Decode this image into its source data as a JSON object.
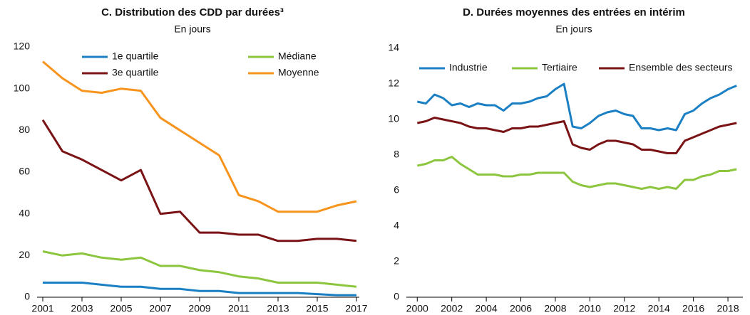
{
  "chart_data": [
    {
      "type": "line",
      "title": "C. Distribution des CDD par durées³",
      "subtitle": "En jours",
      "x": [
        2001,
        2002,
        2003,
        2004,
        2005,
        2006,
        2007,
        2008,
        2009,
        2010,
        2011,
        2012,
        2013,
        2014,
        2015,
        2016,
        2017
      ],
      "xlim": [
        2001,
        2017
      ],
      "xticks": [
        2001,
        2003,
        2005,
        2007,
        2009,
        2011,
        2013,
        2015,
        2017
      ],
      "ylim": [
        0,
        120
      ],
      "yticks": [
        0,
        20,
        40,
        60,
        80,
        100,
        120
      ],
      "grid": false,
      "series": [
        {
          "name": "1e quartile",
          "color": "#1b7fc4",
          "values": [
            7,
            7,
            7,
            6,
            5,
            5,
            4,
            4,
            3,
            3,
            2,
            2,
            2,
            2,
            1.5,
            1,
            1
          ]
        },
        {
          "name": "Médiane",
          "color": "#8cc63f",
          "values": [
            22,
            20,
            21,
            19,
            18,
            19,
            15,
            15,
            13,
            12,
            10,
            9,
            7,
            7,
            7,
            6,
            5
          ]
        },
        {
          "name": "3e quartile",
          "color": "#7a1315",
          "values": [
            85,
            70,
            66,
            61,
            56,
            61,
            40,
            41,
            31,
            31,
            30,
            30,
            27,
            27,
            28,
            28,
            27
          ]
        },
        {
          "name": "Moyenne",
          "color": "#f7941d",
          "values": [
            113,
            105,
            99,
            98,
            100,
            99,
            86,
            80,
            74,
            68,
            49,
            46,
            41,
            41,
            41,
            44,
            46
          ]
        }
      ]
    },
    {
      "type": "line",
      "title": "D. Durées moyennes des entrées en intérim",
      "subtitle": "En jours",
      "x": [
        2000,
        2000.5,
        2001,
        2001.5,
        2002,
        2002.5,
        2003,
        2003.5,
        2004,
        2004.5,
        2005,
        2005.5,
        2006,
        2006.5,
        2007,
        2007.5,
        2008,
        2008.5,
        2009,
        2009.5,
        2010,
        2010.5,
        2011,
        2011.5,
        2012,
        2012.5,
        2013,
        2013.5,
        2014,
        2014.5,
        2015,
        2015.5,
        2016,
        2016.5,
        2017,
        2017.5,
        2018,
        2018.5
      ],
      "xlim": [
        1999.7,
        2018.7
      ],
      "xticks": [
        2000,
        2002,
        2004,
        2006,
        2008,
        2010,
        2012,
        2014,
        2016,
        2018
      ],
      "ylim": [
        0,
        14
      ],
      "yticks": [
        0,
        2,
        4,
        6,
        8,
        10,
        12,
        14
      ],
      "grid": false,
      "series": [
        {
          "name": "Industrie",
          "color": "#1b7fc4",
          "values": [
            11.0,
            10.9,
            11.4,
            11.2,
            10.8,
            10.9,
            10.7,
            10.9,
            10.8,
            10.8,
            10.5,
            10.9,
            10.9,
            11.0,
            11.2,
            11.3,
            11.7,
            12.0,
            9.6,
            9.5,
            9.8,
            10.2,
            10.4,
            10.5,
            10.3,
            10.2,
            9.5,
            9.5,
            9.4,
            9.5,
            9.4,
            10.3,
            10.5,
            10.9,
            11.2,
            11.4,
            11.7,
            11.9
          ]
        },
        {
          "name": "Tertiaire",
          "color": "#8cc63f",
          "values": [
            7.4,
            7.5,
            7.7,
            7.7,
            7.9,
            7.5,
            7.2,
            6.9,
            6.9,
            6.9,
            6.8,
            6.8,
            6.9,
            6.9,
            7.0,
            7.0,
            7.0,
            7.0,
            6.5,
            6.3,
            6.2,
            6.3,
            6.4,
            6.4,
            6.3,
            6.2,
            6.1,
            6.2,
            6.1,
            6.2,
            6.1,
            6.6,
            6.6,
            6.8,
            6.9,
            7.1,
            7.1,
            7.2
          ]
        },
        {
          "name": "Ensemble des secteurs",
          "color": "#7a1315",
          "values": [
            9.8,
            9.9,
            10.1,
            10.0,
            9.9,
            9.8,
            9.6,
            9.5,
            9.5,
            9.4,
            9.3,
            9.5,
            9.5,
            9.6,
            9.6,
            9.7,
            9.8,
            9.9,
            8.6,
            8.4,
            8.3,
            8.6,
            8.8,
            8.8,
            8.7,
            8.6,
            8.3,
            8.3,
            8.2,
            8.1,
            8.1,
            8.8,
            9.0,
            9.2,
            9.4,
            9.6,
            9.7,
            9.8
          ]
        }
      ]
    }
  ]
}
